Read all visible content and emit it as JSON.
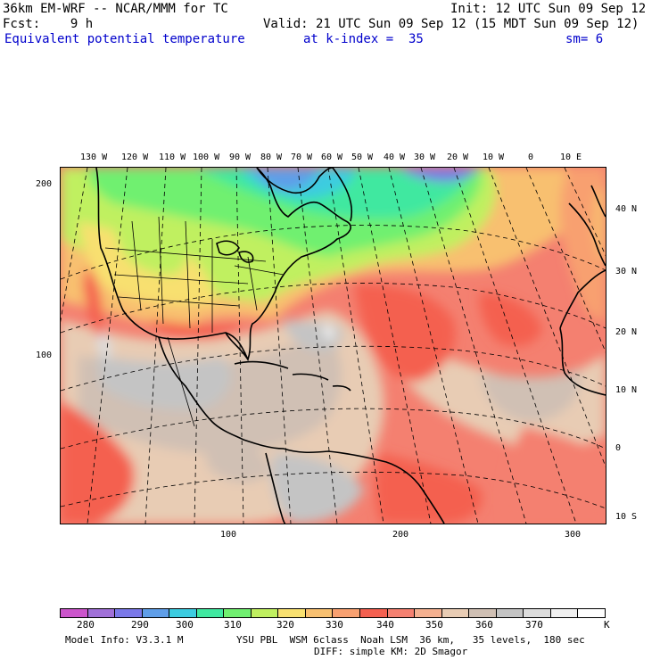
{
  "header": {
    "line1_left": "36km EM-WRF -- NCAR/MMM for TC",
    "line1_right": "Init: 12 UTC Sun 09 Sep 12",
    "line2_left": "Fcst:    9 h",
    "line2_right": "Valid: 21 UTC Sun 09 Sep 12 (15 MDT Sun 09 Sep 12)",
    "line3_field": "Equivalent potential temperature",
    "line3_level": "at k-index =  35",
    "line3_sm": "sm= 6"
  },
  "map": {
    "top_lon_labels": [
      "130 W",
      "120 W",
      "110 W",
      "100 W",
      "90 W",
      "80 W",
      "70 W",
      "60 W",
      "50 W",
      "40 W",
      "30 W",
      "20 W",
      "10 W",
      "0",
      "10 E"
    ],
    "right_lat_labels": [
      "40 N",
      "30 N",
      "20 N",
      "10 N",
      "0",
      "10 S"
    ],
    "left_grid_labels": [
      "200",
      "100"
    ],
    "bottom_grid_labels": [
      "100",
      "200",
      "300"
    ]
  },
  "colorbar": {
    "colors": [
      "#cc55cc",
      "#a070d8",
      "#7a78e8",
      "#5f9ee8",
      "#3ccce0",
      "#40e8a0",
      "#70f070",
      "#c0f060",
      "#f8e070",
      "#f8c070",
      "#f8a070",
      "#f46050",
      "#f48070",
      "#f4b090",
      "#e8ccb4",
      "#d0c0b4",
      "#c4c4c4",
      "#dcdcdc",
      "#f0f0f0",
      "#ffffff"
    ],
    "labels": [
      "280",
      "290",
      "300",
      "310",
      "320",
      "330",
      "340",
      "350",
      "360",
      "370"
    ],
    "unit": "K"
  },
  "footer": {
    "model_info": "Model Info: V3.3.1 M",
    "physics_line1": "YSU PBL  WSM 6class  Noah LSM  36 km,   35 levels,  180 sec",
    "physics_line2": "DIFF: simple KM: 2D Smagor"
  }
}
